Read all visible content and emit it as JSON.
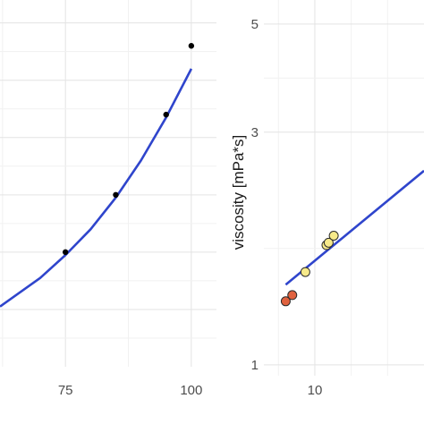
{
  "chart_data": [
    {
      "type": "scatter",
      "title": "",
      "xlabel": "",
      "ylabel": "",
      "x_ticks": [
        75,
        100
      ],
      "xlim": [
        62,
        105
      ],
      "ylim": [
        0,
        6.4
      ],
      "grid": true,
      "points": {
        "x": [
          75,
          85,
          95,
          100
        ],
        "y": [
          2.0,
          3.0,
          4.4,
          5.6
        ],
        "color": "#000000"
      },
      "fit_line": {
        "x": [
          62,
          70,
          75,
          80,
          85,
          90,
          95,
          100
        ],
        "y": [
          1.05,
          1.55,
          1.95,
          2.4,
          2.95,
          3.6,
          4.35,
          5.2
        ],
        "color": "#2f45cc"
      }
    },
    {
      "type": "scatter",
      "title": "",
      "xlabel": "",
      "ylabel": "viscosity [mPa*s]",
      "y_scale": "log",
      "y_ticks": [
        1,
        3,
        5
      ],
      "x_ticks": [
        10
      ],
      "xlim": [
        6.5,
        17.5
      ],
      "ylim": [
        0.95,
        5.6
      ],
      "grid": true,
      "points": {
        "x": [
          8.0,
          8.45,
          9.35,
          10.8,
          10.95,
          11.3
        ],
        "y": [
          1.35,
          1.39,
          1.55,
          1.76,
          1.78,
          1.84
        ],
        "fill": [
          "#e0623f",
          "#e0623f",
          "#f7ea8a",
          "#f7ea8a",
          "#f7ea8a",
          "#f7ea8a"
        ]
      },
      "fit_line": {
        "x": [
          8.0,
          17.5
        ],
        "y": [
          1.46,
          2.5
        ],
        "color": "#2f45cc"
      }
    }
  ]
}
